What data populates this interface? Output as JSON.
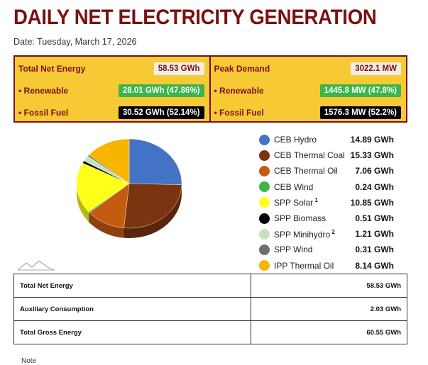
{
  "page": {
    "title": "DAILY NET ELECTRICITY GENERATION",
    "date": "Date: Tuesday, March 17, 2026"
  },
  "energy_panel": {
    "total_label": "Total Net Energy",
    "total_value": "58.53 GWh",
    "renewable_label": "• Renewable",
    "renewable_value": "28.01 GWh (47.86%)",
    "fossil_label": "• Fossil Fuel",
    "fossil_value": "30.52 GWh (52.14%)"
  },
  "demand_panel": {
    "peak_label": "Peak Demand",
    "peak_value": "3022.1 MW",
    "renewable_label": "• Renewable",
    "renewable_value": "1445.8 MW (47.8%)",
    "fossil_label": "• Fossil Fuel",
    "fossil_value": "1576.3 MW (52.2%)"
  },
  "chart_data": {
    "type": "pie",
    "unit": "GWh",
    "slices": [
      {
        "name": "CEB Hydro",
        "value": 14.89,
        "label": "14.89 GWh",
        "color": "#4472c4",
        "note": ""
      },
      {
        "name": "CEB Thermal Coal",
        "value": 15.33,
        "label": "15.33 GWh",
        "color": "#7b3410",
        "note": ""
      },
      {
        "name": "CEB Thermal Oil",
        "value": 7.06,
        "label": "7.06 GWh",
        "color": "#c55a11",
        "note": ""
      },
      {
        "name": "CEB Wind",
        "value": 0.24,
        "label": "0.24 GWh",
        "color": "#3cb54a",
        "note": ""
      },
      {
        "name": "SPP Solar",
        "value": 10.85,
        "label": "10.85 GWh",
        "color": "#ffff1a",
        "note": "1"
      },
      {
        "name": "SPP Biomass",
        "value": 0.51,
        "label": "0.51 GWh",
        "color": "#000000",
        "note": ""
      },
      {
        "name": "SPP Minihydro",
        "value": 1.21,
        "label": "1.21 GWh",
        "color": "#c9e0bf",
        "note": "2"
      },
      {
        "name": "SPP Wind",
        "value": 0.31,
        "label": "0.31 GWh",
        "color": "#6e6e6e",
        "note": ""
      },
      {
        "name": "IPP Thermal Oil",
        "value": 8.14,
        "label": "8.14 GWh",
        "color": "#f7b500",
        "note": ""
      }
    ]
  },
  "summary": [
    {
      "label": "Total Net Energy",
      "value": "58.53 GWh"
    },
    {
      "label": "Auxiliary Consumption",
      "value": "2.03 GWh"
    },
    {
      "label": "Total Gross Energy",
      "value": "60.55 GWh"
    }
  ],
  "footer_fragment": "Note"
}
